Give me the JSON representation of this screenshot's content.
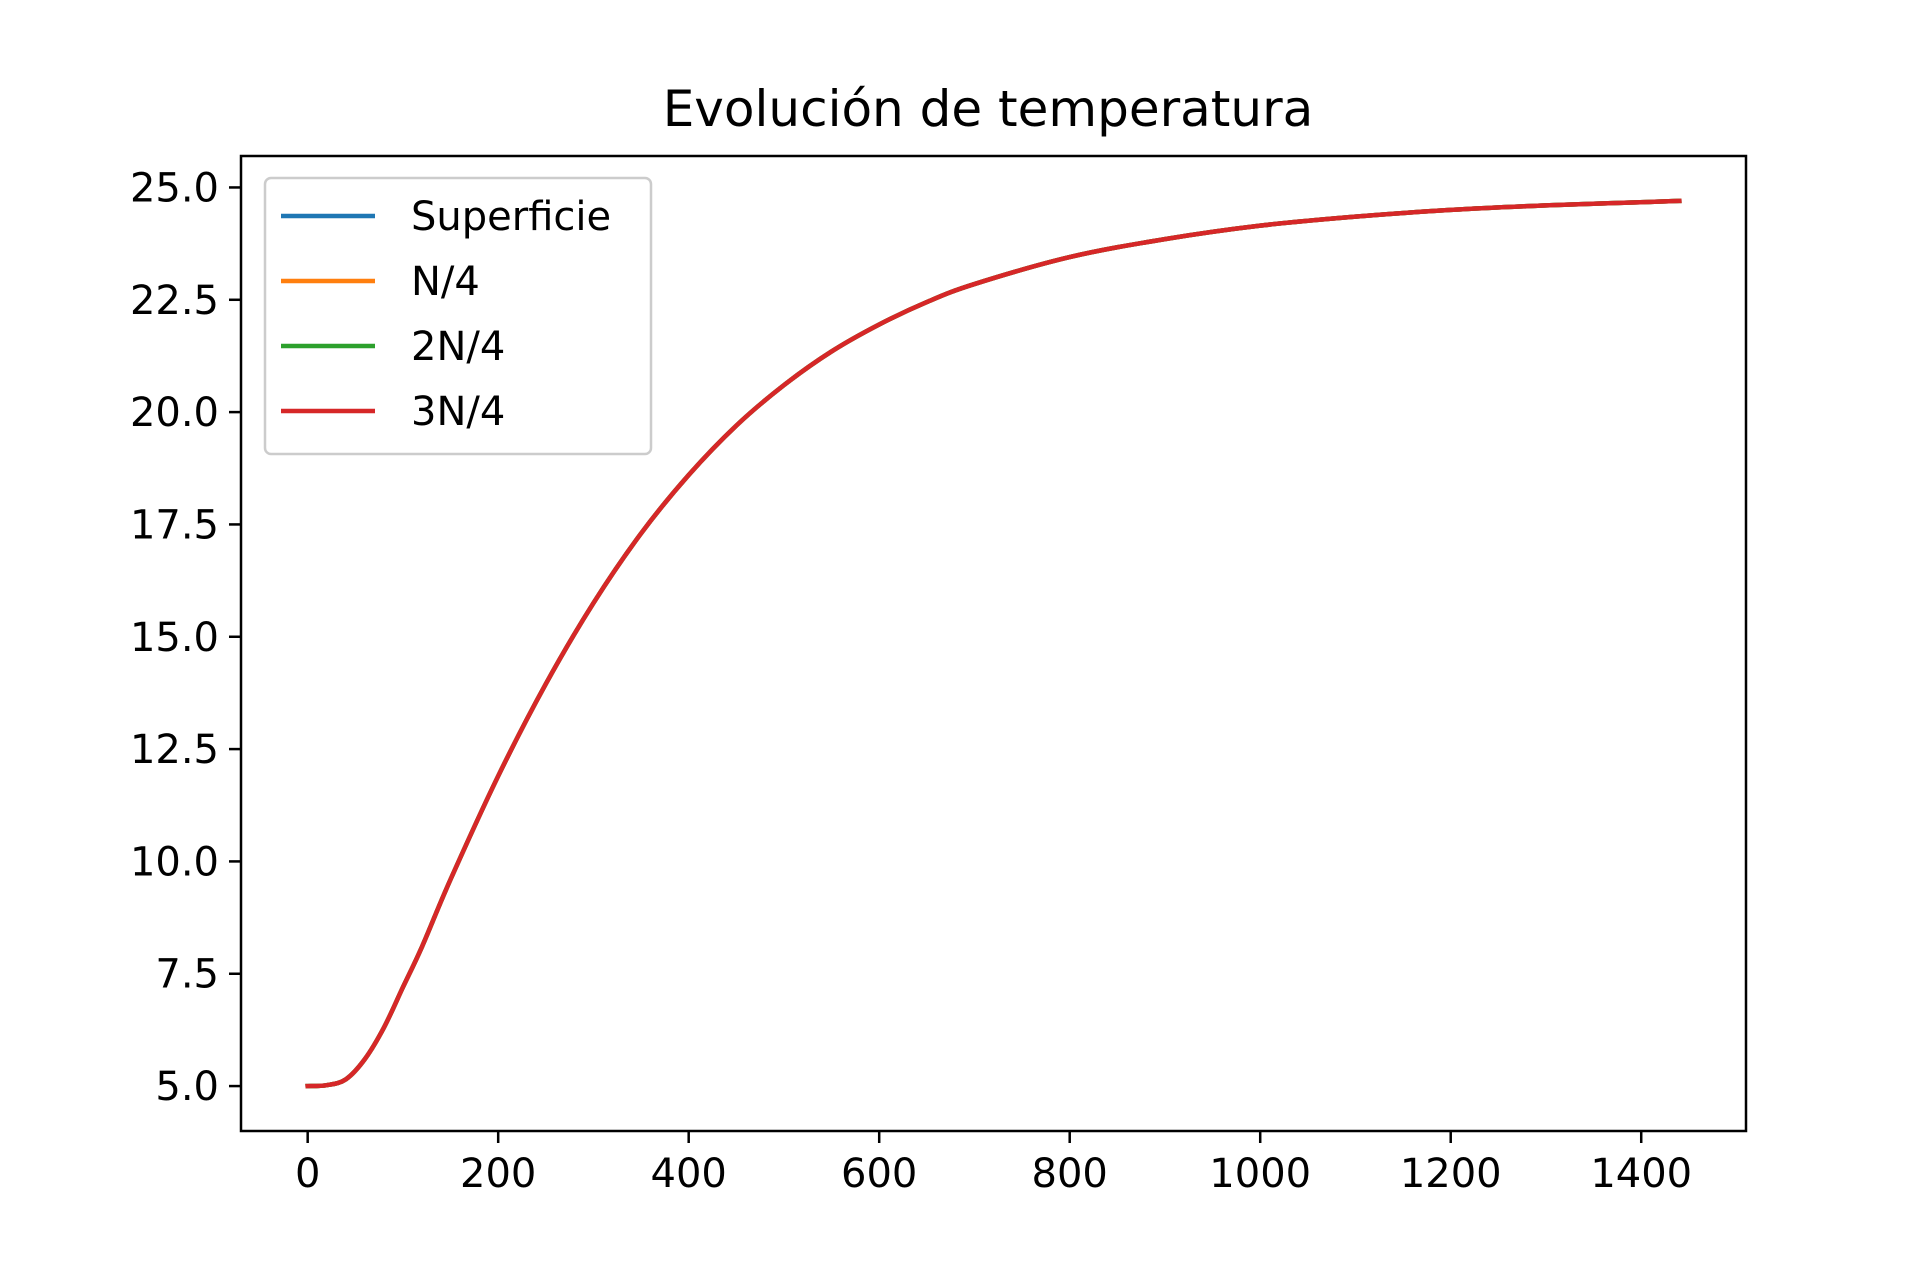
{
  "chart_data": {
    "type": "line",
    "title": "Evolución de temperatura",
    "xlabel": "",
    "ylabel": "",
    "xlim": [
      -70,
      1510
    ],
    "ylim": [
      4.0,
      25.7
    ],
    "grid": false,
    "legend_position": "upper-left",
    "x_ticks": [
      0,
      200,
      400,
      600,
      800,
      1000,
      1200,
      1400
    ],
    "x_tick_labels": [
      "0",
      "200",
      "400",
      "600",
      "800",
      "1000",
      "1200",
      "1400"
    ],
    "y_ticks": [
      5.0,
      7.5,
      10.0,
      12.5,
      15.0,
      17.5,
      20.0,
      22.5,
      25.0
    ],
    "y_tick_labels": [
      "5.0",
      "7.5",
      "10.0",
      "12.5",
      "15.0",
      "17.5",
      "20.0",
      "22.5",
      "25.0"
    ],
    "x": [
      0,
      20,
      40,
      60,
      80,
      100,
      120,
      150,
      200,
      250,
      300,
      350,
      400,
      450,
      500,
      550,
      600,
      650,
      700,
      800,
      900,
      1000,
      1100,
      1200,
      1300,
      1440
    ],
    "series": [
      {
        "name": "Superficie",
        "color": "#1f77b4",
        "values": [
          5.0,
          5.02,
          5.15,
          5.6,
          6.3,
          7.2,
          8.1,
          9.6,
          11.9,
          13.95,
          15.75,
          17.3,
          18.6,
          19.7,
          20.6,
          21.35,
          21.95,
          22.45,
          22.85,
          23.45,
          23.85,
          24.15,
          24.35,
          24.5,
          24.6,
          24.7
        ]
      },
      {
        "name": "N/4",
        "color": "#ff7f0e",
        "values": [
          5.0,
          5.02,
          5.15,
          5.6,
          6.3,
          7.2,
          8.1,
          9.6,
          11.9,
          13.95,
          15.75,
          17.3,
          18.6,
          19.7,
          20.6,
          21.35,
          21.95,
          22.45,
          22.85,
          23.45,
          23.85,
          24.15,
          24.35,
          24.5,
          24.6,
          24.7
        ]
      },
      {
        "name": "2N/4",
        "color": "#2ca02c",
        "values": [
          5.0,
          5.02,
          5.15,
          5.6,
          6.3,
          7.2,
          8.1,
          9.6,
          11.9,
          13.95,
          15.75,
          17.3,
          18.6,
          19.7,
          20.6,
          21.35,
          21.95,
          22.45,
          22.85,
          23.45,
          23.85,
          24.15,
          24.35,
          24.5,
          24.6,
          24.7
        ]
      },
      {
        "name": "3N/4",
        "color": "#d62728",
        "values": [
          5.0,
          5.02,
          5.15,
          5.6,
          6.3,
          7.2,
          8.1,
          9.6,
          11.9,
          13.95,
          15.75,
          17.3,
          18.6,
          19.7,
          20.6,
          21.35,
          21.95,
          22.45,
          22.85,
          23.45,
          23.85,
          24.15,
          24.35,
          24.5,
          24.6,
          24.7
        ]
      }
    ]
  }
}
